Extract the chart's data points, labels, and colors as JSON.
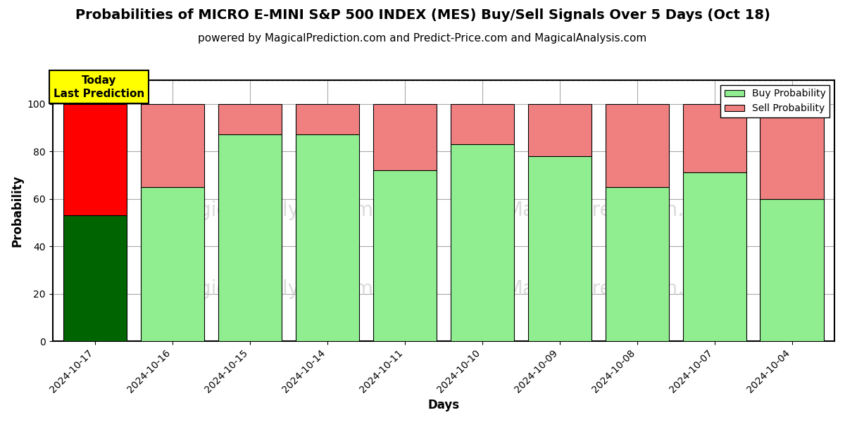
{
  "title": "Probabilities of MICRO E-MINI S&P 500 INDEX (MES) Buy/Sell Signals Over 5 Days (Oct 18)",
  "subtitle": "powered by MagicalPrediction.com and Predict-Price.com and MagicalAnalysis.com",
  "xlabel": "Days",
  "ylabel": "Probability",
  "categories": [
    "2024-10-17",
    "2024-10-16",
    "2024-10-15",
    "2024-10-14",
    "2024-10-11",
    "2024-10-10",
    "2024-10-09",
    "2024-10-08",
    "2024-10-07",
    "2024-10-04"
  ],
  "buy_values": [
    53,
    65,
    87,
    87,
    72,
    83,
    78,
    65,
    71,
    60
  ],
  "sell_values": [
    47,
    35,
    13,
    13,
    28,
    17,
    22,
    35,
    29,
    40
  ],
  "today_index": 0,
  "today_buy_color": "#006400",
  "today_sell_color": "#FF0000",
  "buy_color": "#90EE90",
  "sell_color": "#F08080",
  "ylim": [
    0,
    110
  ],
  "dashed_line_y": 110,
  "grid_color": "#aaaaaa",
  "watermark_color_left": "#cccccc",
  "watermark_color_right": "#cccccc",
  "legend_buy_label": "Buy Probability",
  "legend_sell_label": "Sell Probability",
  "annotation_text": "Today\nLast Prediction",
  "annotation_bg": "#FFFF00",
  "bar_edgecolor": "#000000",
  "background_color": "#ffffff",
  "title_fontsize": 14,
  "subtitle_fontsize": 11,
  "axis_label_fontsize": 12,
  "tick_fontsize": 10,
  "bar_width": 0.82
}
